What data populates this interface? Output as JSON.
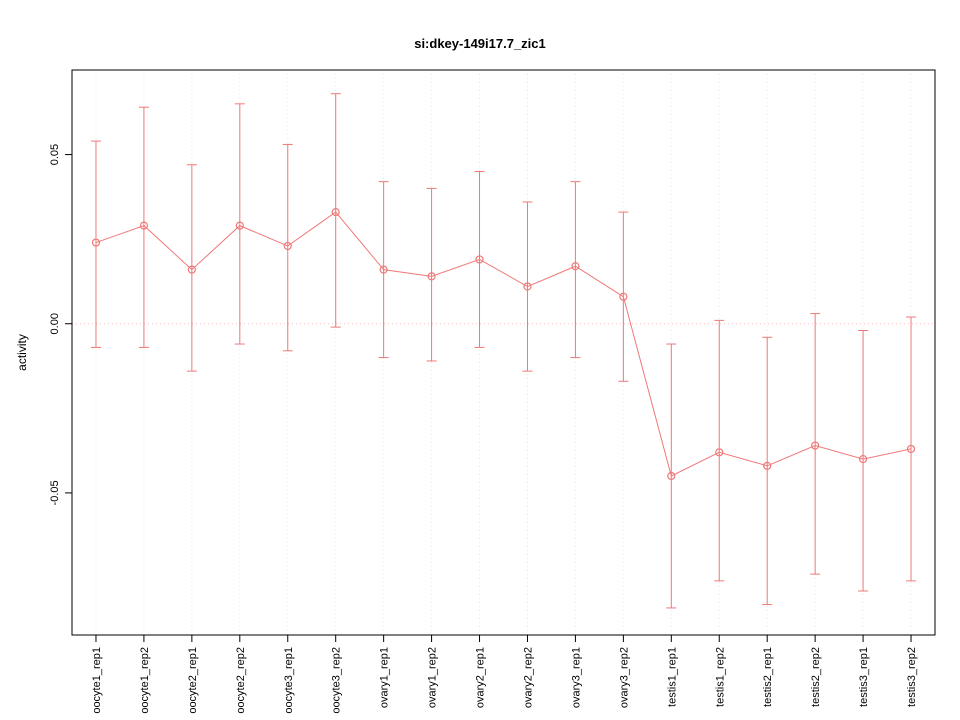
{
  "title": "si:dkey-149i17.7_zic1",
  "chart_data": {
    "type": "line",
    "title": "si:dkey-149i17.7_zic1",
    "xlabel": "",
    "ylabel": "activity",
    "legend": "none",
    "grid": true,
    "categories": [
      "oocyte1_rep1",
      "oocyte1_rep2",
      "oocyte2_rep1",
      "oocyte2_rep2",
      "oocyte3_rep1",
      "oocyte3_rep2",
      "ovary1_rep1",
      "ovary1_rep2",
      "ovary2_rep1",
      "ovary2_rep2",
      "ovary3_rep1",
      "ovary3_rep2",
      "testis1_rep1",
      "testis1_rep2",
      "testis2_rep1",
      "testis2_rep2",
      "testis3_rep1",
      "testis3_rep2"
    ],
    "values": [
      0.024,
      0.029,
      0.016,
      0.029,
      0.023,
      0.033,
      0.016,
      0.014,
      0.019,
      0.011,
      0.017,
      0.008,
      -0.045,
      -0.038,
      -0.042,
      -0.036,
      -0.04,
      -0.037
    ],
    "error_high": [
      0.054,
      0.064,
      0.047,
      0.065,
      0.053,
      0.068,
      0.042,
      0.04,
      0.045,
      0.036,
      0.042,
      0.033,
      -0.006,
      0.001,
      -0.004,
      0.003,
      -0.002,
      0.002
    ],
    "error_low": [
      -0.007,
      -0.007,
      -0.014,
      -0.006,
      -0.008,
      -0.001,
      -0.01,
      -0.011,
      -0.007,
      -0.014,
      -0.01,
      -0.017,
      -0.084,
      -0.076,
      -0.083,
      -0.074,
      -0.079,
      -0.076
    ],
    "yticks": [
      -0.05,
      0,
      0.05
    ],
    "ylim": [
      -0.092,
      0.075
    ],
    "zero_line_y": 0,
    "colors": {
      "series": "#F07878",
      "grid": "#E6E6E6",
      "zero_line": "#F5BDBD",
      "axis": "#000000"
    }
  }
}
